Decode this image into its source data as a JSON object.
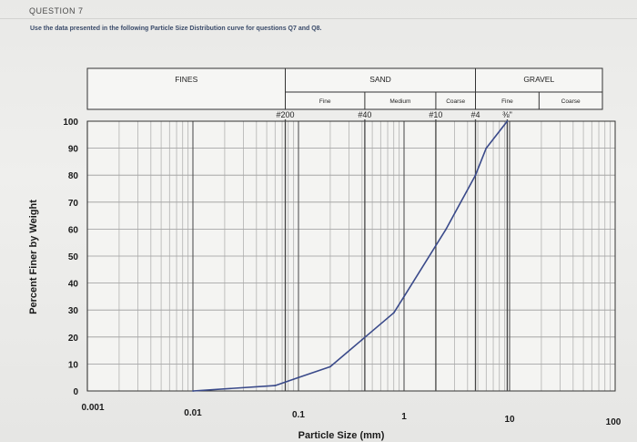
{
  "page": {
    "question_label": "QUESTION 7",
    "instructions": "Use the data presented in the following Particle Size Distribution curve for questions Q7 and Q8."
  },
  "chart_data": {
    "type": "line",
    "xlabel": "Particle Size (mm)",
    "ylabel": "Percent Finer by Weight",
    "x_scale": "log",
    "xlim": [
      0.001,
      100
    ],
    "ylim": [
      0,
      100
    ],
    "x_direction": "increasing to the right",
    "x_ticks": [
      {
        "value": 0.001,
        "label": "0.001"
      },
      {
        "value": 0.01,
        "label": "0.01"
      },
      {
        "value": 0.1,
        "label": "0.1"
      },
      {
        "value": 1,
        "label": "1"
      },
      {
        "value": 10,
        "label": "10"
      },
      {
        "value": 100,
        "label": "100"
      }
    ],
    "y_ticks": [
      {
        "value": 0,
        "label": "0"
      },
      {
        "value": 10,
        "label": "10"
      },
      {
        "value": 20,
        "label": "20"
      },
      {
        "value": 30,
        "label": "30"
      },
      {
        "value": 40,
        "label": "40"
      },
      {
        "value": 50,
        "label": "50"
      },
      {
        "value": 60,
        "label": "60"
      },
      {
        "value": 70,
        "label": "70"
      },
      {
        "value": 80,
        "label": "80"
      },
      {
        "value": 90,
        "label": "90"
      },
      {
        "value": 100,
        "label": "100"
      }
    ],
    "grid": true,
    "line_color": "#3a4a8a",
    "series": [
      {
        "x": [
          0.01,
          0.06,
          0.1,
          0.2,
          0.4,
          0.8,
          1.0,
          2.5,
          4.75,
          6.0,
          9.5
        ],
        "y": [
          0,
          2,
          5,
          9,
          19,
          29,
          35,
          60,
          80,
          90,
          100
        ]
      }
    ],
    "sieves": [
      {
        "label": "#200",
        "value": 0.075
      },
      {
        "label": "#40",
        "value": 0.425
      },
      {
        "label": "#10",
        "value": 2.0
      },
      {
        "label": "#4",
        "value": 4.75
      },
      {
        "label": "⅜\"",
        "value": 9.5
      }
    ],
    "classification": {
      "groups": [
        {
          "label": "FINES",
          "from": 0.001,
          "to": 0.075
        },
        {
          "label": "SAND",
          "from": 0.075,
          "to": 4.75
        },
        {
          "label": "GRAVEL",
          "from": 4.75,
          "to": 100
        }
      ],
      "subgroups": [
        {
          "label": "Fine",
          "from": 0.075,
          "to": 0.425
        },
        {
          "label": "Medium",
          "from": 0.425,
          "to": 2.0
        },
        {
          "label": "Coarse",
          "from": 2.0,
          "to": 4.75
        },
        {
          "label": "Fine",
          "from": 4.75,
          "to": 19
        },
        {
          "label": "Coarse",
          "from": 19,
          "to": 100
        }
      ]
    }
  }
}
